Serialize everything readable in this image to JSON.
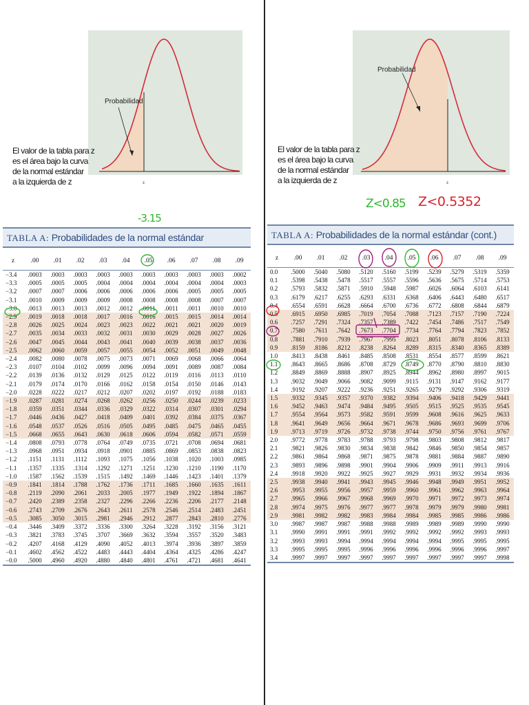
{
  "left": {
    "figure": {
      "prob_label": "Probabilidad",
      "z_label": "z",
      "caption": [
        "El valor de la tabla para z",
        "es el área bajo la curva",
        "de la normal estándar",
        "a la izquierda de z"
      ]
    },
    "annotation": "-3.15",
    "table": {
      "title_prefix": "TABLA A:",
      "title_text": "Probabilidades de la normal estándar",
      "headers": [
        "z",
        ".00",
        ".01",
        ".02",
        ".03",
        ".04",
        ".05",
        ".06",
        ".07",
        ".08",
        ".09"
      ],
      "rows": [
        [
          "−3.4",
          ".0003",
          ".0003",
          ".0003",
          ".0003",
          ".0003",
          ".0003",
          ".0003",
          ".0003",
          ".0003",
          ".0002"
        ],
        [
          "−3.3",
          ".0005",
          ".0005",
          ".0005",
          ".0004",
          ".0004",
          ".0004",
          ".0004",
          ".0004",
          ".0004",
          ".0003"
        ],
        [
          "−3.2",
          ".0007",
          ".0007",
          ".0006",
          ".0006",
          ".0006",
          ".0006",
          ".0006",
          ".0005",
          ".0005",
          ".0005"
        ],
        [
          "−3.1",
          ".0010",
          ".0009",
          ".0009",
          ".0009",
          ".0008",
          ".0008",
          ".0008",
          ".0008",
          ".0007",
          ".0007"
        ],
        [
          "−3.0",
          ".0013",
          ".0013",
          ".0013",
          ".0012",
          ".0012",
          ".0011",
          ".0011",
          ".0011",
          ".0010",
          ".0010"
        ],
        [
          "−2.9",
          ".0019",
          ".0018",
          ".0018",
          ".0017",
          ".0016",
          ".0016",
          ".0015",
          ".0015",
          ".0014",
          ".0014"
        ],
        [
          "−2.8",
          ".0026",
          ".0025",
          ".0024",
          ".0023",
          ".0023",
          ".0022",
          ".0021",
          ".0021",
          ".0020",
          ".0019"
        ],
        [
          "−2.7",
          ".0035",
          ".0034",
          ".0033",
          ".0032",
          ".0031",
          ".0030",
          ".0029",
          ".0028",
          ".0027",
          ".0026"
        ],
        [
          "−2.6",
          ".0047",
          ".0045",
          ".0044",
          ".0043",
          ".0041",
          ".0040",
          ".0039",
          ".0038",
          ".0037",
          ".0036"
        ],
        [
          "−2.5",
          ".0062",
          ".0060",
          ".0059",
          ".0057",
          ".0055",
          ".0054",
          ".0052",
          ".0051",
          ".0049",
          ".0048"
        ],
        [
          "−2.4",
          ".0082",
          ".0080",
          ".0078",
          ".0075",
          ".0073",
          ".0071",
          ".0069",
          ".0068",
          ".0066",
          ".0064"
        ],
        [
          "−2.3",
          ".0107",
          ".0104",
          ".0102",
          ".0099",
          ".0096",
          ".0094",
          ".0091",
          ".0089",
          ".0087",
          ".0084"
        ],
        [
          "−2.2",
          ".0139",
          ".0136",
          ".0132",
          ".0129",
          ".0125",
          ".0122",
          ".0119",
          ".0116",
          ".0113",
          ".0110"
        ],
        [
          "−2.1",
          ".0179",
          ".0174",
          ".0170",
          ".0166",
          ".0162",
          ".0158",
          ".0154",
          ".0150",
          ".0146",
          ".0143"
        ],
        [
          "−2.0",
          ".0228",
          ".0222",
          ".0217",
          ".0212",
          ".0207",
          ".0202",
          ".0197",
          ".0192",
          ".0188",
          ".0183"
        ],
        [
          "−1.9",
          ".0287",
          ".0281",
          ".0274",
          ".0268",
          ".0262",
          ".0256",
          ".0250",
          ".0244",
          ".0239",
          ".0233"
        ],
        [
          "−1.8",
          ".0359",
          ".0351",
          ".0344",
          ".0336",
          ".0329",
          ".0322",
          ".0314",
          ".0307",
          ".0301",
          ".0294"
        ],
        [
          "−1.7",
          ".0446",
          ".0436",
          ".0427",
          ".0418",
          ".0409",
          ".0401",
          ".0392",
          ".0384",
          ".0375",
          ".0367"
        ],
        [
          "−1.6",
          ".0548",
          ".0537",
          ".0526",
          ".0516",
          ".0505",
          ".0495",
          ".0485",
          ".0475",
          ".0465",
          ".0455"
        ],
        [
          "−1.5",
          ".0668",
          ".0655",
          ".0643",
          ".0630",
          ".0618",
          ".0606",
          ".0594",
          ".0582",
          ".0571",
          ".0559"
        ],
        [
          "−1.4",
          ".0808",
          ".0793",
          ".0778",
          ".0764",
          ".0749",
          ".0735",
          ".0721",
          ".0708",
          ".0694",
          ".0681"
        ],
        [
          "−1.3",
          ".0968",
          ".0951",
          ".0934",
          ".0918",
          ".0901",
          ".0885",
          ".0869",
          ".0853",
          ".0838",
          ".0823"
        ],
        [
          "−1.2",
          ".1151",
          ".1131",
          ".1112",
          ".1093",
          ".1075",
          ".1056",
          ".1038",
          ".1020",
          ".1003",
          ".0985"
        ],
        [
          "−1.1",
          ".1357",
          ".1335",
          ".1314",
          ".1292",
          ".1271",
          ".1251",
          ".1230",
          ".1210",
          ".1190",
          ".1170"
        ],
        [
          "−1.0",
          ".1587",
          ".1562",
          ".1539",
          ".1515",
          ".1492",
          ".1469",
          ".1446",
          ".1423",
          ".1401",
          ".1379"
        ],
        [
          "−0.9",
          ".1841",
          ".1814",
          ".1788",
          ".1762",
          ".1736",
          ".1711",
          ".1685",
          ".1660",
          ".1635",
          ".1611"
        ],
        [
          "−0.8",
          ".2119",
          ".2090",
          ".2061",
          ".2033",
          ".2005",
          ".1977",
          ".1949",
          ".1922",
          ".1894",
          ".1867"
        ],
        [
          "−0.7",
          ".2420",
          ".2389",
          ".2358",
          ".2327",
          ".2296",
          ".2266",
          ".2236",
          ".2206",
          ".2177",
          ".2148"
        ],
        [
          "−0.6",
          ".2743",
          ".2709",
          ".2676",
          ".2643",
          ".2611",
          ".2578",
          ".2546",
          ".2514",
          ".2483",
          ".2451"
        ],
        [
          "−0.5",
          ".3085",
          ".3050",
          ".3015",
          ".2981",
          ".2946",
          ".2912",
          ".2877",
          ".2843",
          ".2810",
          ".2776"
        ],
        [
          "−0.4",
          ".3446",
          ".3409",
          ".3372",
          ".3336",
          ".3300",
          ".3264",
          ".3228",
          ".3192",
          ".3156",
          ".3121"
        ],
        [
          "−0.3",
          ".3821",
          ".3783",
          ".3745",
          ".3707",
          ".3669",
          ".3632",
          ".3594",
          ".3557",
          ".3520",
          ".3483"
        ],
        [
          "−0.2",
          ".4207",
          ".4168",
          ".4129",
          ".4090",
          ".4052",
          ".4013",
          ".3974",
          ".3936",
          ".3897",
          ".3859"
        ],
        [
          "−0.1",
          ".4602",
          ".4562",
          ".4522",
          ".4483",
          ".4443",
          ".4404",
          ".4364",
          ".4325",
          ".4286",
          ".4247"
        ],
        [
          "−0.0",
          ".5000",
          ".4960",
          ".4920",
          ".4880",
          ".4840",
          ".4801",
          ".4761",
          ".4721",
          ".4681",
          ".4641"
        ]
      ]
    }
  },
  "right": {
    "figure": {
      "prob_label": "Probabilidad",
      "z_label": "z",
      "caption": [
        "El valor de la tabla para z",
        "es el área bajo la curva",
        "de la normal estándar",
        "a la izquierda de z"
      ]
    },
    "annotation_green": "Z<0.85",
    "annotation_red": "Z<0.5352",
    "table": {
      "title_prefix": "TABLA A:",
      "title_text": "Probabilidades de la normal estándar (cont.)",
      "headers": [
        "z",
        ".00",
        ".01",
        ".02",
        ".03",
        ".04",
        ".05",
        ".06",
        ".07",
        ".08",
        ".09"
      ],
      "rows": [
        [
          "0.0",
          ".5000",
          ".5040",
          ".5080",
          ".5120",
          ".5160",
          ".5199",
          ".5239",
          ".5279",
          ".5319",
          ".5359"
        ],
        [
          "0.1",
          ".5398",
          ".5438",
          ".5478",
          ".5517",
          ".5557",
          ".5596",
          ".5636",
          ".5675",
          ".5714",
          ".5753"
        ],
        [
          "0.2",
          ".5793",
          ".5832",
          ".5871",
          ".5910",
          ".5948",
          ".5987",
          ".6026",
          ".6064",
          ".6103",
          ".6141"
        ],
        [
          "0.3",
          ".6179",
          ".6217",
          ".6255",
          ".6293",
          ".6331",
          ".6368",
          ".6406",
          ".6443",
          ".6480",
          ".6517"
        ],
        [
          "0.4",
          ".6554",
          ".6591",
          ".6628",
          ".6664",
          ".6700",
          ".6736",
          ".6772",
          ".6808",
          ".6844",
          ".6879"
        ],
        [
          "0.5",
          ".6915",
          ".6950",
          ".6985",
          ".7019",
          ".7054",
          ".7088",
          ".7123",
          ".7157",
          ".7190",
          ".7224"
        ],
        [
          "0.6",
          ".7257",
          ".7291",
          ".7324",
          ".7357",
          ".7389",
          ".7422",
          ".7454",
          ".7486",
          ".7517",
          ".7549"
        ],
        [
          "0.7",
          ".7580",
          ".7611",
          ".7642",
          ".7673",
          ".7704",
          ".7734",
          ".7764",
          ".7794",
          ".7823",
          ".7852"
        ],
        [
          "0.8",
          ".7881",
          ".7910",
          ".7939",
          ".7967",
          ".7995",
          ".8023",
          ".8051",
          ".8078",
          ".8106",
          ".8133"
        ],
        [
          "0.9",
          ".8159",
          ".8186",
          ".8212",
          ".8238",
          ".8264",
          ".8289",
          ".8315",
          ".8340",
          ".8365",
          ".8389"
        ],
        [
          "1.0",
          ".8413",
          ".8438",
          ".8461",
          ".8485",
          ".8508",
          ".8531",
          ".8554",
          ".8577",
          ".8599",
          ".8621"
        ],
        [
          "1.1",
          ".8643",
          ".8665",
          ".8686",
          ".8708",
          ".8729",
          ".8749",
          ".8770",
          ".8790",
          ".8810",
          ".8830"
        ],
        [
          "1.2",
          ".8849",
          ".8869",
          ".8888",
          ".8907",
          ".8925",
          ".8944",
          ".8962",
          ".8980",
          ".8997",
          ".9015"
        ],
        [
          "1.3",
          ".9032",
          ".9049",
          ".9066",
          ".9082",
          ".9099",
          ".9115",
          ".9131",
          ".9147",
          ".9162",
          ".9177"
        ],
        [
          "1.4",
          ".9192",
          ".9207",
          ".9222",
          ".9236",
          ".9251",
          ".9265",
          ".9279",
          ".9292",
          ".9306",
          ".9319"
        ],
        [
          "1.5",
          ".9332",
          ".9345",
          ".9357",
          ".9370",
          ".9382",
          ".9394",
          ".9406",
          ".9418",
          ".9429",
          ".9441"
        ],
        [
          "1.6",
          ".9452",
          ".9463",
          ".9474",
          ".9484",
          ".9495",
          ".9505",
          ".9515",
          ".9525",
          ".9535",
          ".9545"
        ],
        [
          "1.7",
          ".9554",
          ".9564",
          ".9573",
          ".9582",
          ".9591",
          ".9599",
          ".9608",
          ".9616",
          ".9625",
          ".9633"
        ],
        [
          "1.8",
          ".9641",
          ".9649",
          ".9656",
          ".9664",
          ".9671",
          ".9678",
          ".9686",
          ".9693",
          ".9699",
          ".9706"
        ],
        [
          "1.9",
          ".9713",
          ".9719",
          ".9726",
          ".9732",
          ".9738",
          ".9744",
          ".9750",
          ".9756",
          ".9761",
          ".9767"
        ],
        [
          "2.0",
          ".9772",
          ".9778",
          ".9783",
          ".9788",
          ".9793",
          ".9798",
          ".9803",
          ".9808",
          ".9812",
          ".9817"
        ],
        [
          "2.1",
          ".9821",
          ".9826",
          ".9830",
          ".9834",
          ".9838",
          ".9842",
          ".9846",
          ".9850",
          ".9854",
          ".9857"
        ],
        [
          "2.2",
          ".9861",
          ".9864",
          ".9868",
          ".9871",
          ".9875",
          ".9878",
          ".9881",
          ".9884",
          ".9887",
          ".9890"
        ],
        [
          "2.3",
          ".9893",
          ".9896",
          ".9898",
          ".9901",
          ".9904",
          ".9906",
          ".9909",
          ".9911",
          ".9913",
          ".9916"
        ],
        [
          "2.4",
          ".9918",
          ".9920",
          ".9922",
          ".9925",
          ".9927",
          ".9929",
          ".9931",
          ".9932",
          ".9934",
          ".9936"
        ],
        [
          "2.5",
          ".9938",
          ".9940",
          ".9941",
          ".9943",
          ".9945",
          ".9946",
          ".9948",
          ".9949",
          ".9951",
          ".9952"
        ],
        [
          "2.6",
          ".9953",
          ".9955",
          ".9956",
          ".9957",
          ".9959",
          ".9960",
          ".9961",
          ".9962",
          ".9963",
          ".9964"
        ],
        [
          "2.7",
          ".9965",
          ".9966",
          ".9967",
          ".9968",
          ".9969",
          ".9970",
          ".9971",
          ".9972",
          ".9973",
          ".9974"
        ],
        [
          "2.8",
          ".9974",
          ".9975",
          ".9976",
          ".9977",
          ".9977",
          ".9978",
          ".9979",
          ".9979",
          ".9980",
          ".9981"
        ],
        [
          "2.9",
          ".9981",
          ".9982",
          ".9982",
          ".9983",
          ".9984",
          ".9984",
          ".9985",
          ".9985",
          ".9986",
          ".9986"
        ],
        [
          "3.0",
          ".9987",
          ".9987",
          ".9987",
          ".9988",
          ".9988",
          ".9989",
          ".9989",
          ".9989",
          ".9990",
          ".9990"
        ],
        [
          "3.1",
          ".9990",
          ".9991",
          ".9991",
          ".9991",
          ".9992",
          ".9992",
          ".9992",
          ".9992",
          ".9993",
          ".9993"
        ],
        [
          "3.2",
          ".9993",
          ".9993",
          ".9994",
          ".9994",
          ".9994",
          ".9994",
          ".9994",
          ".9995",
          ".9995",
          ".9995"
        ],
        [
          "3.3",
          ".9995",
          ".9995",
          ".9995",
          ".9996",
          ".9996",
          ".9996",
          ".9996",
          ".9996",
          ".9996",
          ".9997"
        ],
        [
          "3.4",
          ".9997",
          ".9997",
          ".9997",
          ".9997",
          ".9997",
          ".9997",
          ".9997",
          ".9997",
          ".9997",
          ".9998"
        ]
      ]
    }
  },
  "colors": {
    "shade_row": "#f3e2d4",
    "title_bg": "#e6ecf4",
    "title_text": "#2c4a80",
    "curve": "#d42a3a",
    "area_fill": "#f3d9c2",
    "figure_bg": "#dfe7df",
    "ink_green": "#2fb52f",
    "ink_purple": "#a0207a",
    "ink_red": "#d8202a"
  }
}
